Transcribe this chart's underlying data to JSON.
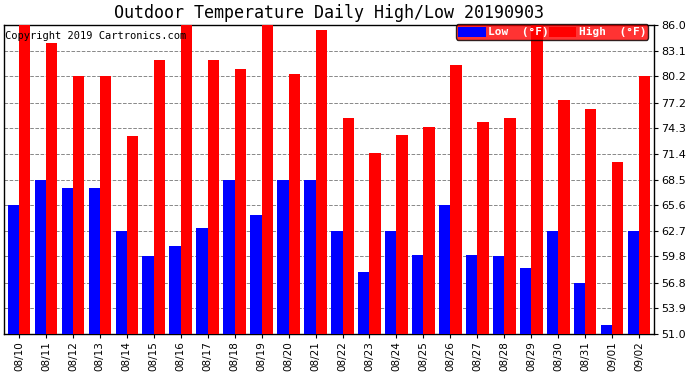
{
  "title": "Outdoor Temperature Daily High/Low 20190903",
  "copyright": "Copyright 2019 Cartronics.com",
  "dates": [
    "08/10",
    "08/11",
    "08/12",
    "08/13",
    "08/14",
    "08/15",
    "08/16",
    "08/17",
    "08/18",
    "08/19",
    "08/20",
    "08/21",
    "08/22",
    "08/23",
    "08/24",
    "08/25",
    "08/26",
    "08/27",
    "08/28",
    "08/29",
    "08/30",
    "08/31",
    "09/01",
    "09/02"
  ],
  "highs": [
    86.0,
    84.0,
    80.2,
    80.2,
    73.4,
    82.0,
    86.0,
    82.0,
    81.0,
    86.0,
    80.5,
    85.5,
    75.5,
    71.5,
    73.5,
    74.5,
    81.5,
    75.0,
    75.5,
    86.0,
    77.5,
    76.5,
    70.5,
    80.2
  ],
  "lows": [
    65.6,
    68.5,
    67.5,
    67.5,
    62.7,
    59.8,
    61.0,
    63.0,
    68.5,
    64.5,
    68.5,
    68.5,
    62.7,
    58.0,
    62.7,
    60.0,
    65.6,
    60.0,
    59.8,
    58.5,
    62.7,
    56.8,
    52.0,
    62.7
  ],
  "ymin": 51.0,
  "ymax": 86.0,
  "yticks": [
    51.0,
    53.9,
    56.8,
    59.8,
    62.7,
    65.6,
    68.5,
    71.4,
    74.3,
    77.2,
    80.2,
    83.1,
    86.0
  ],
  "low_color": "#0000ff",
  "high_color": "#ff0000",
  "bg_color": "#ffffff",
  "grid_color": "#888888",
  "title_fontsize": 12,
  "copyright_fontsize": 7.5,
  "tick_fontsize": 7.5,
  "ytick_fontsize": 8
}
